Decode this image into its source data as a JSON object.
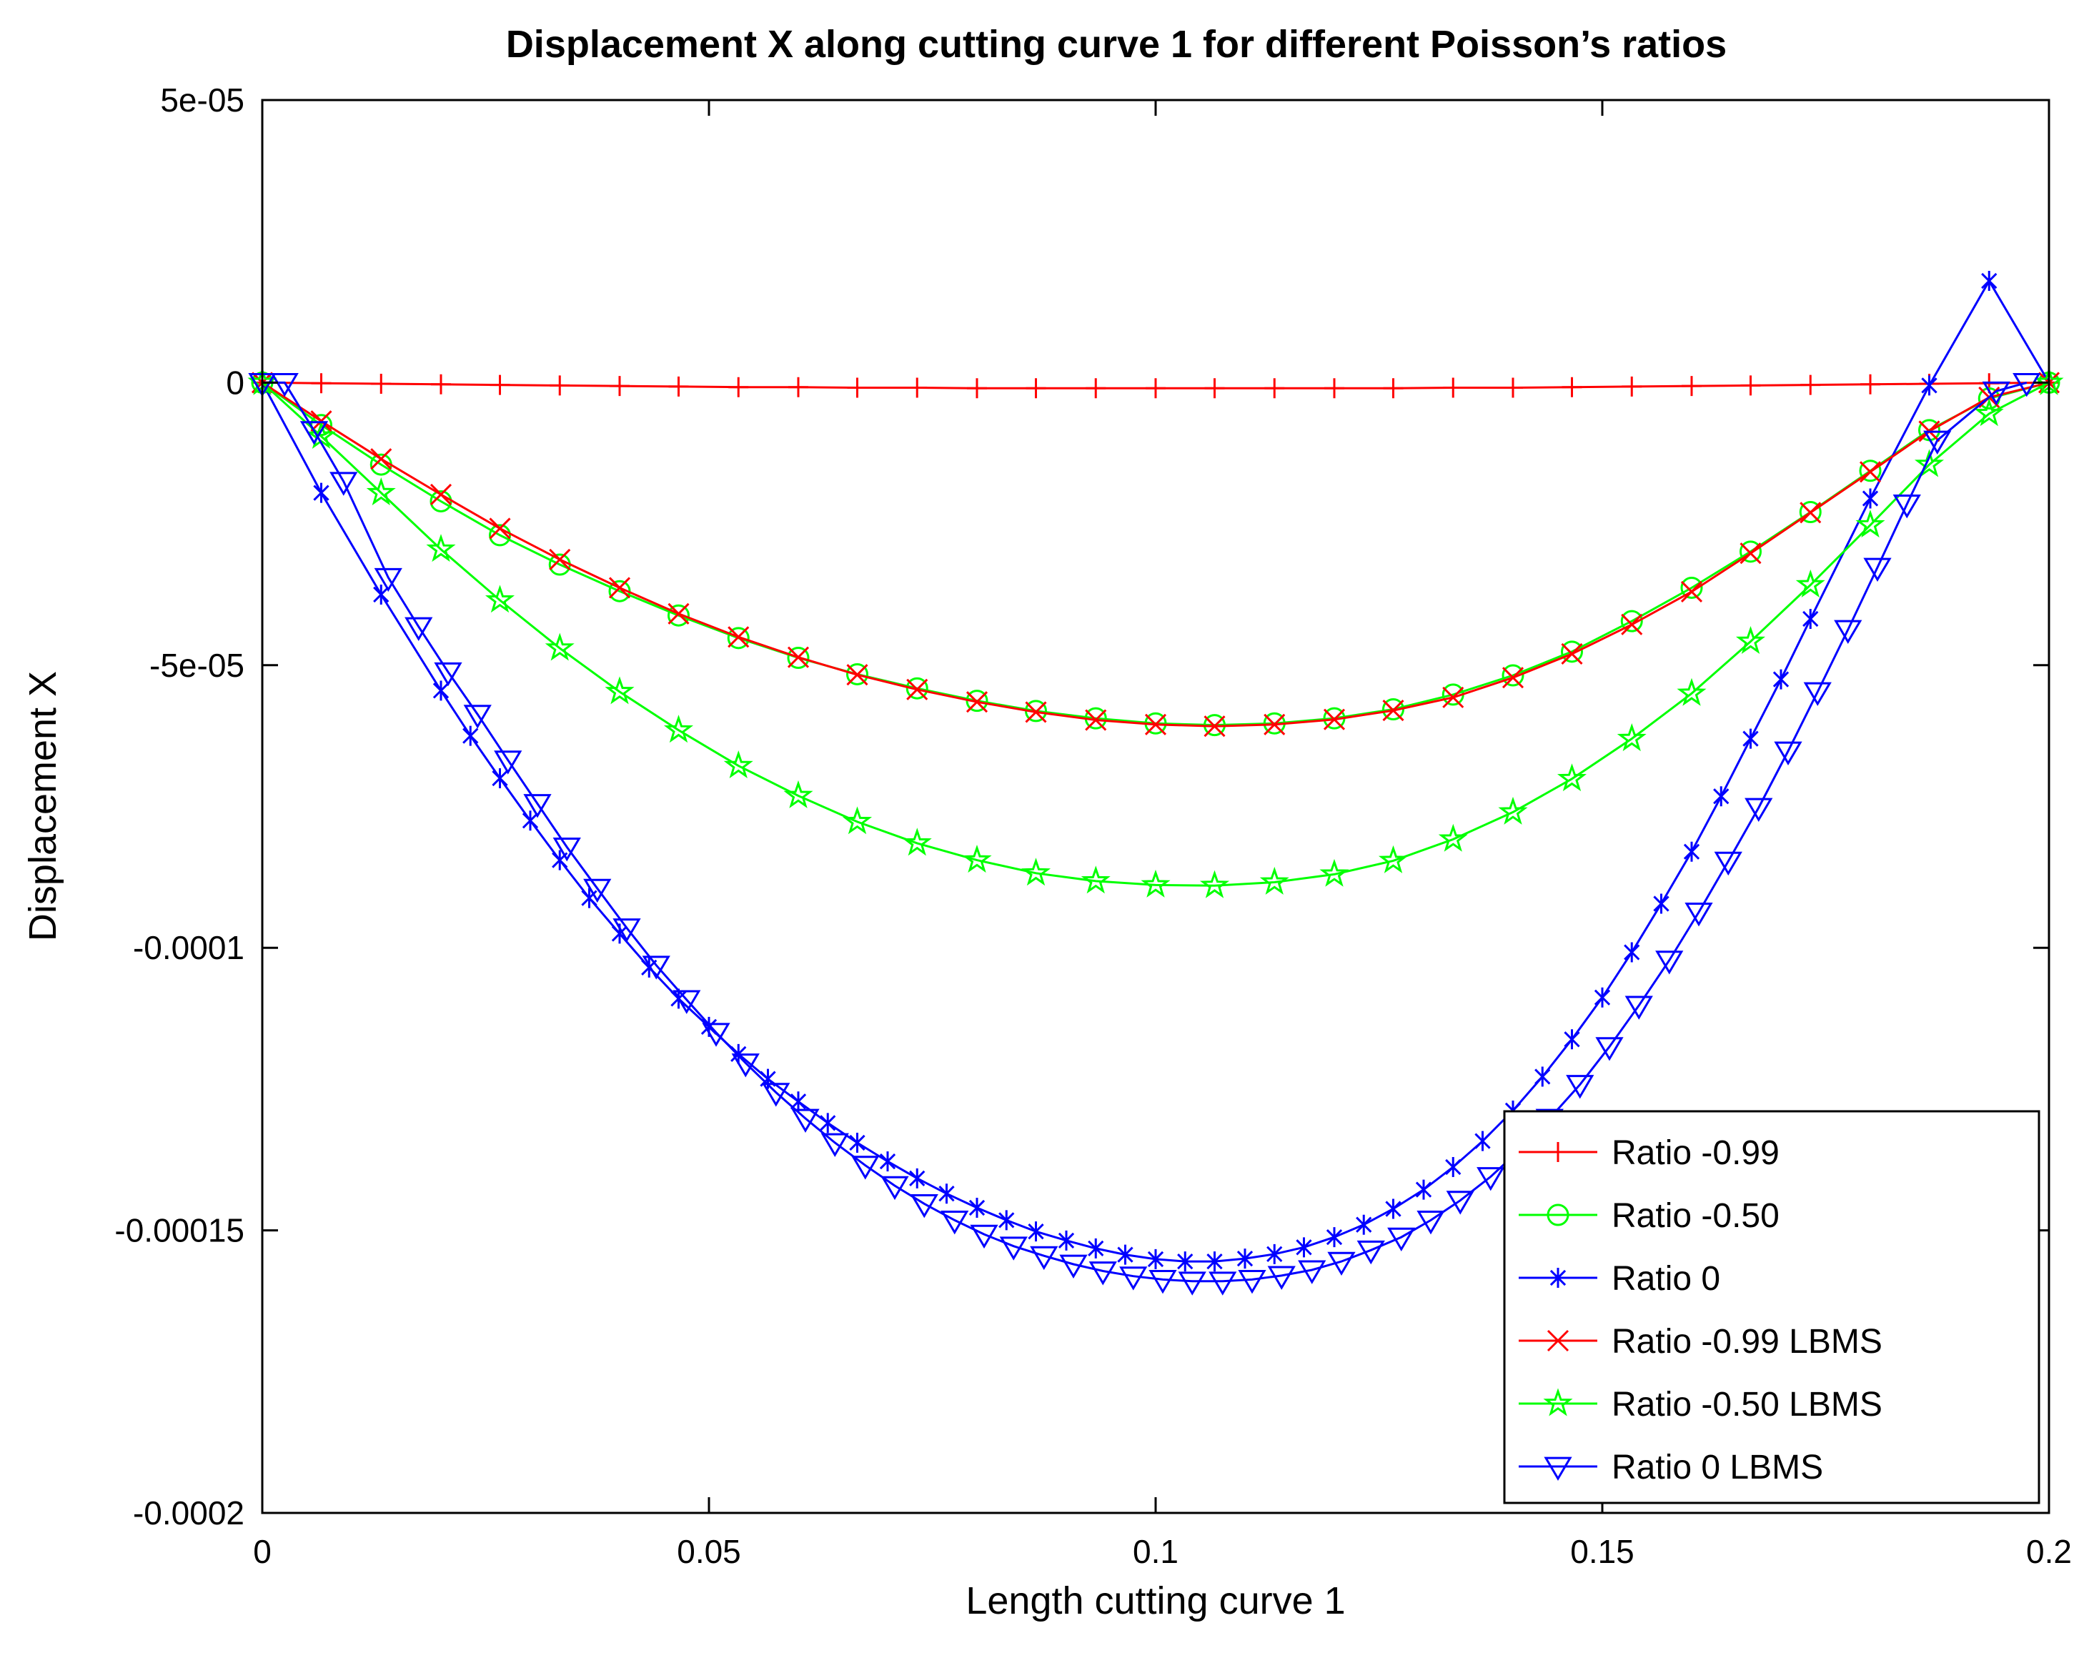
{
  "chart_data": {
    "type": "line",
    "title": "Displacement X along cutting curve 1 for different Poisson’s ratios",
    "xlabel": "Length cutting curve 1",
    "ylabel": "Displacement X",
    "xlim": [
      0,
      0.2
    ],
    "ylim": [
      -0.0002,
      5e-05
    ],
    "xticks": [
      0,
      0.05,
      0.1,
      0.15,
      0.2
    ],
    "xtick_labels": [
      "0",
      "0.05",
      "0.1",
      "0.15",
      "0.2"
    ],
    "yticks": [
      5e-05,
      0,
      -5e-05,
      -0.0001,
      -0.00015,
      -0.0002
    ],
    "ytick_labels": [
      "5e-05",
      "0",
      "-5e-05",
      "-0.0001",
      "-0.00015",
      "-0.0002"
    ],
    "grid": false,
    "legend_position": "bottom-right",
    "series": [
      {
        "name": "Ratio -0.99",
        "color": "#ff0000",
        "marker": "plus",
        "x": [
          0,
          0.0066,
          0.0133,
          0.02,
          0.0266,
          0.0333,
          0.04,
          0.0466,
          0.0533,
          0.06,
          0.0666,
          0.0733,
          0.08,
          0.0866,
          0.0933,
          0.1,
          0.1066,
          0.1133,
          0.12,
          0.1266,
          0.1333,
          0.14,
          0.1466,
          0.1533,
          0.16,
          0.1666,
          0.1733,
          0.18,
          0.1866,
          0.1933,
          0.2
        ],
        "y": [
          0,
          -1e-07,
          -2e-07,
          -3e-07,
          -4e-07,
          -5e-07,
          -6e-07,
          -7e-07,
          -8e-07,
          -8e-07,
          -9e-07,
          -9e-07,
          -1e-06,
          -1e-06,
          -1e-06,
          -1e-06,
          -1e-06,
          -1e-06,
          -1e-06,
          -1e-06,
          -9e-07,
          -9e-07,
          -8e-07,
          -7e-07,
          -6e-07,
          -5e-07,
          -4e-07,
          -3e-07,
          -2e-07,
          -1e-07,
          0
        ]
      },
      {
        "name": "Ratio -0.50",
        "color": "#00ff00",
        "marker": "circle",
        "x": [
          0,
          0.0066,
          0.0133,
          0.02,
          0.0266,
          0.0333,
          0.04,
          0.0466,
          0.0533,
          0.06,
          0.0666,
          0.0733,
          0.08,
          0.0866,
          0.0933,
          0.1,
          0.1066,
          0.1133,
          0.12,
          0.1266,
          0.1333,
          0.14,
          0.1466,
          0.1533,
          0.16,
          0.1666,
          0.1733,
          0.18,
          0.1866,
          0.1933,
          0.2
        ],
        "y": [
          0,
          -7.5e-06,
          -1.45e-05,
          -2.1e-05,
          -2.7e-05,
          -3.22e-05,
          -3.69e-05,
          -4.12e-05,
          -4.52e-05,
          -4.87e-05,
          -5.16e-05,
          -5.41e-05,
          -5.63e-05,
          -5.81e-05,
          -5.94e-05,
          -6.03e-05,
          -6.06e-05,
          -6.03e-05,
          -5.94e-05,
          -5.78e-05,
          -5.52e-05,
          -5.18e-05,
          -4.76e-05,
          -4.22e-05,
          -3.63e-05,
          -2.99e-05,
          -2.29e-05,
          -1.56e-05,
          -8.4e-06,
          -2.8e-06,
          0
        ]
      },
      {
        "name": "Ratio 0",
        "color": "#0000ff",
        "marker": "asterisk",
        "x": [
          0,
          0.0066,
          0.0133,
          0.02,
          0.0233,
          0.0266,
          0.03,
          0.0333,
          0.0366,
          0.04,
          0.0433,
          0.0466,
          0.05,
          0.0533,
          0.0566,
          0.06,
          0.0633,
          0.0666,
          0.07,
          0.0733,
          0.0766,
          0.08,
          0.0833,
          0.0866,
          0.09,
          0.0933,
          0.0966,
          0.1,
          0.1033,
          0.1066,
          0.11,
          0.1133,
          0.1166,
          0.12,
          0.1233,
          0.1266,
          0.13,
          0.1333,
          0.1366,
          0.14,
          0.1433,
          0.1466,
          0.15,
          0.1533,
          0.1566,
          0.16,
          0.1633,
          0.1666,
          0.17,
          0.1733,
          0.18,
          0.1866,
          0.1933,
          0.2
        ],
        "y": [
          0,
          -1.95e-05,
          -3.75e-05,
          -5.45e-05,
          -6.25e-05,
          -7e-05,
          -7.75e-05,
          -8.45e-05,
          -9.12e-05,
          -9.75e-05,
          -0.0001035,
          -0.000109,
          -0.000114,
          -0.0001188,
          -0.0001232,
          -0.0001272,
          -0.000131,
          -0.0001345,
          -0.0001378,
          -0.0001408,
          -0.0001435,
          -0.000146,
          -0.0001482,
          -0.0001502,
          -0.0001518,
          -0.0001532,
          -0.0001543,
          -0.0001551,
          -0.0001555,
          -0.0001555,
          -0.000155,
          -0.0001542,
          -0.000153,
          -0.0001512,
          -0.000149,
          -0.0001462,
          -0.0001428,
          -0.0001388,
          -0.0001342,
          -0.0001288,
          -0.0001228,
          -0.0001162,
          -0.0001088,
          -0.0001008,
          -9.22e-05,
          -8.3e-05,
          -7.32e-05,
          -6.3e-05,
          -5.25e-05,
          -4.18e-05,
          -2.05e-05,
          -5e-07,
          1.8e-05,
          0
        ]
      },
      {
        "name": "Ratio -0.99 LBMS",
        "color": "#ff0000",
        "marker": "cross",
        "x": [
          0,
          0.0066,
          0.0133,
          0.02,
          0.0266,
          0.0333,
          0.04,
          0.0466,
          0.0533,
          0.06,
          0.0666,
          0.0733,
          0.08,
          0.0866,
          0.0933,
          0.1,
          0.1066,
          0.1133,
          0.12,
          0.1266,
          0.1333,
          0.14,
          0.1466,
          0.1533,
          0.16,
          0.1666,
          0.1733,
          0.18,
          0.1866,
          0.1933,
          0.2
        ],
        "y": [
          0,
          -6.8e-06,
          -1.35e-05,
          -1.98e-05,
          -2.58e-05,
          -3.13e-05,
          -3.63e-05,
          -4.09e-05,
          -4.5e-05,
          -4.86e-05,
          -5.17e-05,
          -5.43e-05,
          -5.65e-05,
          -5.83e-05,
          -5.97e-05,
          -6.05e-05,
          -6.08e-05,
          -6.05e-05,
          -5.96e-05,
          -5.8e-05,
          -5.57e-05,
          -5.22e-05,
          -4.8e-05,
          -4.28e-05,
          -3.7e-05,
          -3.02e-05,
          -2.3e-05,
          -1.58e-05,
          -8.6e-06,
          -2.6e-06,
          0
        ]
      },
      {
        "name": "Ratio -0.50 LBMS",
        "color": "#00ff00",
        "marker": "pentagram",
        "x": [
          0,
          0.0066,
          0.0133,
          0.02,
          0.0266,
          0.0333,
          0.04,
          0.0466,
          0.0533,
          0.06,
          0.0666,
          0.0733,
          0.08,
          0.0866,
          0.0933,
          0.1,
          0.1066,
          0.1133,
          0.12,
          0.1266,
          0.1333,
          0.14,
          0.1466,
          0.1533,
          0.16,
          0.1666,
          0.1733,
          0.18,
          0.1866,
          0.1933,
          0.2
        ],
        "y": [
          0,
          -9.5e-06,
          -1.95e-05,
          -2.95e-05,
          -3.85e-05,
          -4.7e-05,
          -5.47e-05,
          -6.15e-05,
          -6.78e-05,
          -7.31e-05,
          -7.77e-05,
          -8.15e-05,
          -8.45e-05,
          -8.68e-05,
          -8.82e-05,
          -8.89e-05,
          -8.9e-05,
          -8.84e-05,
          -8.7e-05,
          -8.46e-05,
          -8.08e-05,
          -7.6e-05,
          -7.01e-05,
          -6.3e-05,
          -5.5e-05,
          -4.58e-05,
          -3.58e-05,
          -2.52e-05,
          -1.45e-05,
          -5.5e-06,
          0
        ]
      },
      {
        "name": "Ratio 0 LBMS",
        "color": "#0000ff",
        "marker": "triangle-down",
        "x": [
          0,
          0.0025,
          0.0058,
          0.0091,
          0.0141,
          0.0175,
          0.0208,
          0.0241,
          0.0275,
          0.0308,
          0.0341,
          0.0375,
          0.0408,
          0.0441,
          0.0475,
          0.0508,
          0.0541,
          0.0575,
          0.0608,
          0.0641,
          0.0675,
          0.0708,
          0.0741,
          0.0775,
          0.0808,
          0.0841,
          0.0875,
          0.0908,
          0.0941,
          0.0975,
          0.1008,
          0.1041,
          0.1075,
          0.1108,
          0.1141,
          0.1175,
          0.1208,
          0.1241,
          0.1275,
          0.1308,
          0.1341,
          0.1375,
          0.1408,
          0.1441,
          0.1475,
          0.1508,
          0.1541,
          0.1575,
          0.1608,
          0.1641,
          0.1675,
          0.1708,
          0.1741,
          0.1775,
          0.1808,
          0.1841,
          0.1875,
          0.1941,
          0.1975
        ],
        "y": [
          0,
          0,
          -8.5e-06,
          -1.75e-05,
          -3.45e-05,
          -4.32e-05,
          -5.12e-05,
          -5.87e-05,
          -6.68e-05,
          -7.45e-05,
          -8.22e-05,
          -8.95e-05,
          -9.65e-05,
          -0.0001031,
          -0.0001092,
          -0.000115,
          -0.0001204,
          -0.0001256,
          -0.0001302,
          -0.0001345,
          -0.0001385,
          -0.0001421,
          -0.0001453,
          -0.0001482,
          -0.0001507,
          -0.0001528,
          -0.0001545,
          -0.000156,
          -0.0001572,
          -0.0001581,
          -0.0001587,
          -0.000159,
          -0.000159,
          -0.0001587,
          -0.000158,
          -0.000157,
          -0.0001555,
          -0.0001535,
          -0.0001512,
          -0.0001482,
          -0.0001447,
          -0.0001405,
          -0.0001357,
          -0.0001302,
          -0.0001242,
          -0.0001175,
          -0.0001102,
          -0.0001022,
          -9.37e-05,
          -8.47e-05,
          -7.52e-05,
          -6.52e-05,
          -5.47e-05,
          -4.37e-05,
          -3.27e-05,
          -2.15e-05,
          -1.02e-05,
          -1.5e-06,
          0
        ]
      }
    ]
  }
}
